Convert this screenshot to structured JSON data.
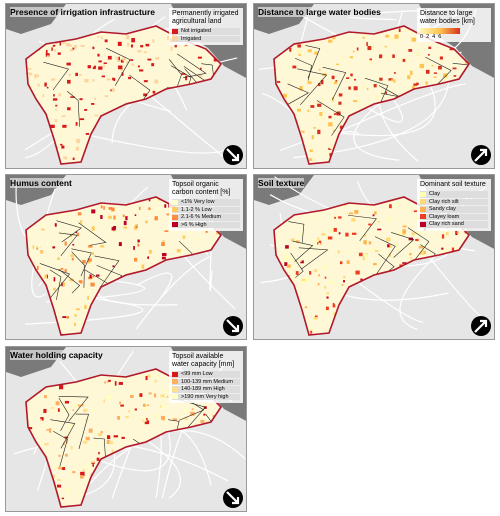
{
  "panels": [
    {
      "title": "Presence of irrigation infrastructure",
      "legend": {
        "title": "Permanently irrigated agricultural land",
        "items": [
          {
            "label": "Not irrigated",
            "color": "#d7191c"
          },
          {
            "label": "Irrigated",
            "color": "#fdd49e"
          }
        ]
      },
      "arrow": "down-right"
    },
    {
      "title": "Distance to large water bodies",
      "legend": {
        "title": "Distance to large water bodies [km]",
        "gradient": [
          "#fff7bc",
          "#fec44f",
          "#d7301f"
        ],
        "ticks": [
          0,
          2,
          4,
          6
        ]
      },
      "arrow": "up-right"
    },
    {
      "title": "Humus content",
      "legend": {
        "title": "Topsoil organic carbon content [%]",
        "items": [
          {
            "label": "<1% Very low",
            "color": "#ffffcc"
          },
          {
            "label": "1.1-2 % Low",
            "color": "#fecc5c"
          },
          {
            "label": "2.1-6 % Medium",
            "color": "#fd8d3c"
          },
          {
            "label": ">6 % High",
            "color": "#bd0026"
          }
        ]
      },
      "arrow": "down-right"
    },
    {
      "title": "Soil texture",
      "legend": {
        "title": "Dominant soil texture",
        "items": [
          {
            "label": "Clay",
            "color": "#ffffb2"
          },
          {
            "label": "Clay rich silt",
            "color": "#fed976"
          },
          {
            "label": "Sandy clay",
            "color": "#feb24c"
          },
          {
            "label": "Clayey loam",
            "color": "#f03b20"
          },
          {
            "label": "Clay rich sand",
            "color": "#bd0026"
          }
        ]
      },
      "arrow": "up-right"
    },
    {
      "title": "Water holding capacity",
      "legend": {
        "title": "Topsoil available water capacity [mm]",
        "items": [
          {
            "label": "<99 mm Low",
            "color": "#d7191c"
          },
          {
            "label": "100-139 mm Medium",
            "color": "#fdae61"
          },
          {
            "label": "140-189 mm High",
            "color": "#fee08b"
          },
          {
            "label": ">190 mm Very high",
            "color": "#ffffbf"
          }
        ]
      },
      "arrow": "down-right"
    }
  ]
}
